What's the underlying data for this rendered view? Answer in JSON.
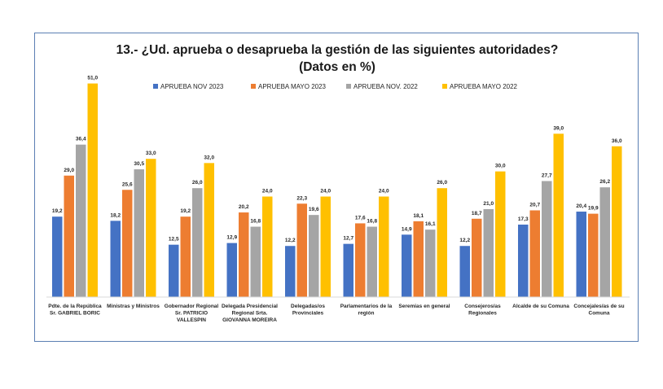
{
  "chart_data": {
    "type": "bar",
    "title": "13.- ¿Ud. aprueba o desaprueba la gestión de las siguientes autoridades?",
    "subtitle": "(Datos en %)",
    "xlabel": "",
    "ylabel": "",
    "ylim": [
      0,
      55
    ],
    "grid": false,
    "legend_position": "top",
    "categories": [
      [
        "Pdte. de la República",
        "Sr. GABRIEL BORIC"
      ],
      [
        "Ministras y Ministros"
      ],
      [
        "Gobernador Regional",
        "Sr. PATRICIO",
        "VALLESPIN"
      ],
      [
        "Delegada Presidencial",
        "Regional Srta.",
        "GIOVANNA MOREIRA"
      ],
      [
        "Delegadas/os",
        "Provinciales"
      ],
      [
        "Parlamentarios de la",
        "región"
      ],
      [
        "Seremias en general"
      ],
      [
        "Consejeros/as",
        "Regionales"
      ],
      [
        "Alcalde de su Comuna"
      ],
      [
        "Concejales/as de su",
        "Comuna"
      ]
    ],
    "series": [
      {
        "name": "APRUEBA NOV 2023",
        "color": "#4472c4",
        "values": [
          19.2,
          18.2,
          12.5,
          12.9,
          12.2,
          12.7,
          14.9,
          12.2,
          17.3,
          20.4
        ],
        "labels": [
          "19,2",
          "18,2",
          "12,5",
          "12,9",
          "12,2",
          "12,7",
          "14,9",
          "12,2",
          "17,3",
          "20,4"
        ]
      },
      {
        "name": "APRUEBA MAYO 2023",
        "color": "#ed7d31",
        "values": [
          29.0,
          25.6,
          19.2,
          20.2,
          22.3,
          17.6,
          18.1,
          18.7,
          20.7,
          19.9
        ],
        "labels": [
          "29,0",
          "25,6",
          "19,2",
          "20,2",
          "22,3",
          "17,6",
          "18,1",
          "18,7",
          "20,7",
          "19,9"
        ]
      },
      {
        "name": "APRUEBA NOV. 2022",
        "color": "#a5a5a5",
        "values": [
          36.4,
          30.5,
          26.0,
          16.8,
          19.6,
          16.8,
          16.1,
          21.0,
          27.7,
          26.2
        ],
        "labels": [
          "36,4",
          "30,5",
          "26,0",
          "16,8",
          "19,6",
          "16,8",
          "16,1",
          "21,0",
          "27,7",
          "26,2"
        ]
      },
      {
        "name": "APRUEBA MAYO 2022",
        "color": "#ffc000",
        "values": [
          51.0,
          33.0,
          32.0,
          24.0,
          24.0,
          24.0,
          26.0,
          30.0,
          39.0,
          36.0
        ],
        "labels": [
          "51,0",
          "33,0",
          "32,0",
          "24,0",
          "24,0",
          "24,0",
          "26,0",
          "30,0",
          "39,0",
          "36,0"
        ]
      }
    ]
  }
}
